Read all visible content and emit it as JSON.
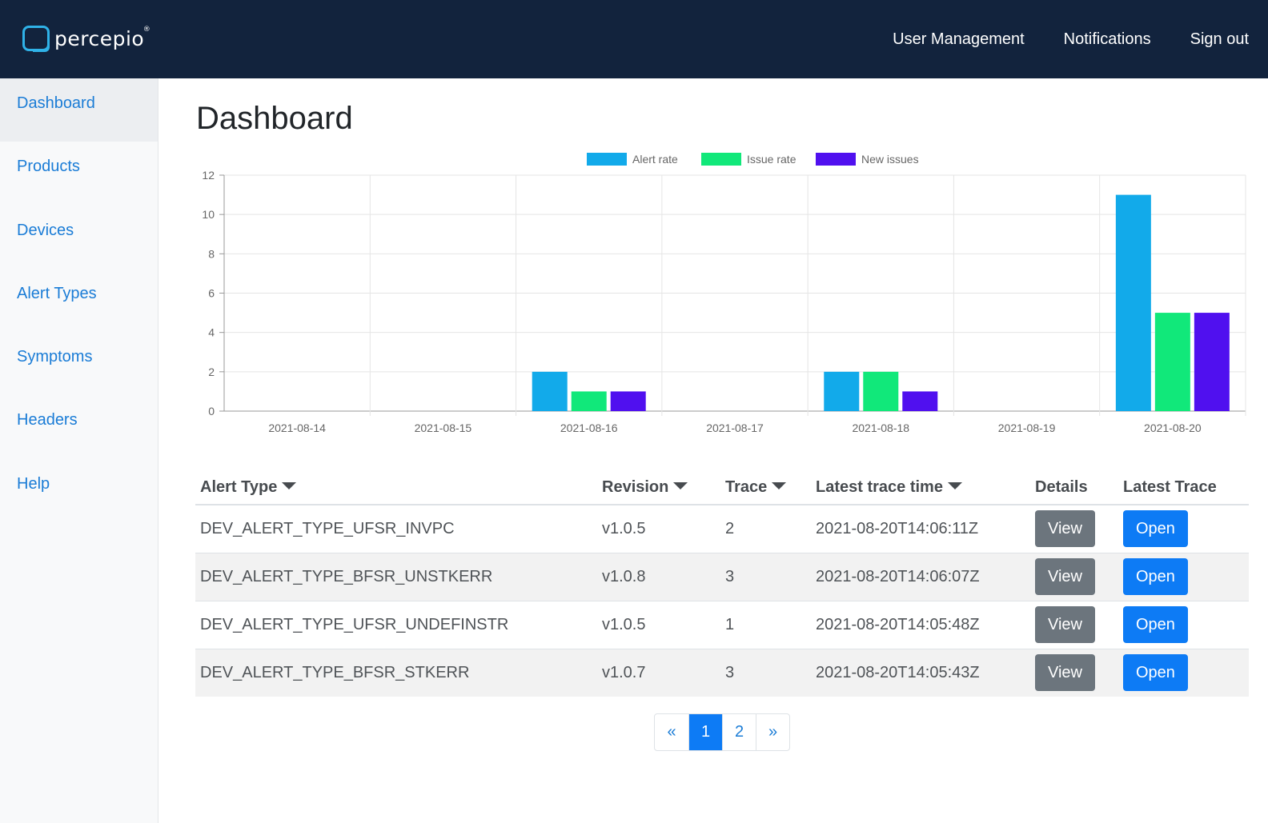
{
  "app": {
    "logo_text": "percepio",
    "logo_mark": "®"
  },
  "topnav": {
    "user_management": "User Management",
    "notifications": "Notifications",
    "sign_out": "Sign out"
  },
  "sidebar": {
    "items": [
      {
        "label": "Dashboard"
      },
      {
        "label": "Products"
      },
      {
        "label": "Devices"
      },
      {
        "label": "Alert Types"
      },
      {
        "label": "Symptoms"
      },
      {
        "label": "Headers"
      },
      {
        "label": "Help"
      }
    ]
  },
  "page": {
    "title": "Dashboard"
  },
  "chart_data": {
    "type": "bar",
    "categories": [
      "2021-08-14",
      "2021-08-15",
      "2021-08-16",
      "2021-08-17",
      "2021-08-18",
      "2021-08-19",
      "2021-08-20"
    ],
    "series": [
      {
        "name": "Alert rate",
        "color": "#12aaea",
        "values": [
          0,
          0,
          2,
          0,
          2,
          0,
          11
        ]
      },
      {
        "name": "Issue rate",
        "color": "#11e87a",
        "values": [
          0,
          0,
          1,
          0,
          2,
          0,
          5
        ]
      },
      {
        "name": "New issues",
        "color": "#5010ef",
        "values": [
          0,
          0,
          1,
          0,
          1,
          0,
          5
        ]
      }
    ],
    "yticks": [
      0,
      2,
      4,
      6,
      8,
      10,
      12
    ],
    "ylim": [
      0,
      12
    ],
    "legend": "top-center",
    "grid": true
  },
  "table": {
    "headers": {
      "alert_type": "Alert Type",
      "revision": "Revision",
      "trace": "Trace",
      "latest_trace_time": "Latest trace time",
      "details": "Details",
      "latest_trace": "Latest Trace"
    },
    "rows": [
      {
        "alert_type": "DEV_ALERT_TYPE_UFSR_INVPC",
        "revision": "v1.0.5",
        "trace": "2",
        "time": "2021-08-20T14:06:11Z",
        "view": "View",
        "open": "Open"
      },
      {
        "alert_type": "DEV_ALERT_TYPE_BFSR_UNSTKERR",
        "revision": "v1.0.8",
        "trace": "3",
        "time": "2021-08-20T14:06:07Z",
        "view": "View",
        "open": "Open"
      },
      {
        "alert_type": "DEV_ALERT_TYPE_UFSR_UNDEFINSTR",
        "revision": "v1.0.5",
        "trace": "1",
        "time": "2021-08-20T14:05:48Z",
        "view": "View",
        "open": "Open"
      },
      {
        "alert_type": "DEV_ALERT_TYPE_BFSR_STKERR",
        "revision": "v1.0.7",
        "trace": "3",
        "time": "2021-08-20T14:05:43Z",
        "view": "View",
        "open": "Open"
      }
    ]
  },
  "pagination": {
    "prev": "«",
    "pages": [
      "1",
      "2"
    ],
    "next": "»",
    "current": "1"
  }
}
